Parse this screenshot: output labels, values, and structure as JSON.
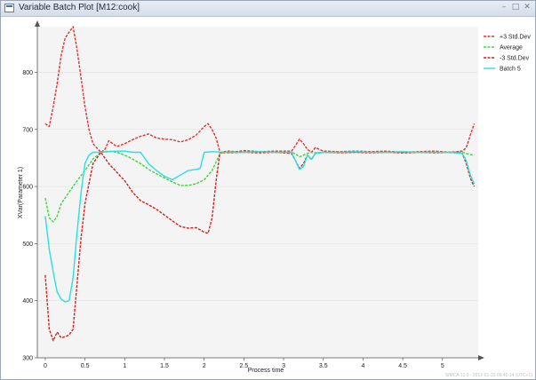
{
  "window": {
    "title": "Variable Batch Plot [M12:cook]",
    "controls": [
      "–",
      "□",
      "✕"
    ]
  },
  "chart_data": {
    "type": "line",
    "title": "",
    "xlabel": "Process time",
    "ylabel": "XVar(Parameter 1)",
    "xlim": [
      -0.1,
      5.45
    ],
    "ylim": [
      300,
      880
    ],
    "xticks": [
      "0",
      "0.5",
      "1",
      "1.5",
      "2",
      "2.5",
      "3",
      "3.5",
      "4",
      "4.5",
      "5"
    ],
    "xtick_values": [
      0,
      0.5,
      1,
      1.5,
      2,
      2.5,
      3,
      3.5,
      4,
      4.5,
      5
    ],
    "yticks": [
      "300",
      "400",
      "500",
      "600",
      "700",
      "800"
    ],
    "ytick_values": [
      300,
      400,
      500,
      600,
      700,
      800
    ],
    "grid": true,
    "legend_position": "top-right",
    "series": [
      {
        "name": "+3 Std.Dev",
        "color": "#e03030",
        "dash": "dashed",
        "x": [
          0,
          0.05,
          0.1,
          0.15,
          0.2,
          0.25,
          0.3,
          0.35,
          0.4,
          0.45,
          0.5,
          0.55,
          0.6,
          0.7,
          0.75,
          0.8,
          0.85,
          0.9,
          1.0,
          1.1,
          1.2,
          1.3,
          1.4,
          1.5,
          1.6,
          1.7,
          1.8,
          1.9,
          2.0,
          2.05,
          2.1,
          2.15,
          2.2,
          2.3,
          2.4,
          2.5,
          2.7,
          2.9,
          3.1,
          3.15,
          3.2,
          3.25,
          3.3,
          3.35,
          3.4,
          3.5,
          3.7,
          3.9,
          4.1,
          4.3,
          4.5,
          4.7,
          4.9,
          5.1,
          5.25,
          5.3,
          5.35,
          5.4
        ],
        "y": [
          710,
          705,
          740,
          780,
          830,
          860,
          870,
          880,
          840,
          790,
          740,
          700,
          675,
          660,
          665,
          680,
          675,
          670,
          675,
          682,
          688,
          692,
          685,
          683,
          682,
          678,
          682,
          690,
          705,
          710,
          700,
          685,
          660,
          662,
          661,
          663,
          661,
          662,
          662,
          672,
          683,
          675,
          665,
          660,
          668,
          662,
          661,
          662,
          661,
          662,
          660,
          661,
          662,
          660,
          662,
          668,
          690,
          710
        ]
      },
      {
        "name": "Average",
        "color": "#3ad83a",
        "dash": "dashed",
        "x": [
          0,
          0.05,
          0.1,
          0.15,
          0.2,
          0.3,
          0.4,
          0.5,
          0.6,
          0.7,
          0.8,
          0.9,
          1.0,
          1.1,
          1.2,
          1.3,
          1.4,
          1.5,
          1.6,
          1.7,
          1.8,
          1.9,
          2.0,
          2.1,
          2.2,
          2.3,
          2.5,
          2.7,
          2.9,
          3.1,
          3.15,
          3.2,
          3.25,
          3.3,
          3.35,
          3.4,
          3.5,
          3.7,
          3.9,
          4.1,
          4.3,
          4.5,
          4.7,
          4.9,
          5.1,
          5.25,
          5.3,
          5.35,
          5.4
        ],
        "y": [
          580,
          545,
          538,
          548,
          570,
          590,
          610,
          628,
          648,
          660,
          662,
          660,
          655,
          648,
          640,
          630,
          622,
          615,
          608,
          602,
          602,
          605,
          612,
          628,
          658,
          661,
          660,
          661,
          660,
          660,
          657,
          652,
          655,
          658,
          660,
          659,
          660,
          660,
          660,
          660,
          660,
          660,
          660,
          660,
          660,
          660,
          658,
          656,
          655
        ]
      },
      {
        "name": "-3 Std.Dev",
        "color": "#d02020",
        "dash": "dashed",
        "x": [
          0,
          0.05,
          0.1,
          0.15,
          0.2,
          0.25,
          0.3,
          0.35,
          0.4,
          0.45,
          0.5,
          0.6,
          0.7,
          0.8,
          0.9,
          1.0,
          1.1,
          1.2,
          1.3,
          1.4,
          1.5,
          1.6,
          1.7,
          1.8,
          1.9,
          2.0,
          2.05,
          2.1,
          2.15,
          2.2,
          2.3,
          2.5,
          2.7,
          2.9,
          3.1,
          3.15,
          3.2,
          3.25,
          3.3,
          3.35,
          3.4,
          3.5,
          3.7,
          3.9,
          4.1,
          4.3,
          4.5,
          4.7,
          4.9,
          5.1,
          5.25,
          5.3,
          5.35,
          5.4
        ],
        "y": [
          445,
          350,
          330,
          345,
          335,
          337,
          340,
          350,
          430,
          510,
          570,
          640,
          660,
          640,
          625,
          610,
          590,
          575,
          568,
          560,
          550,
          540,
          530,
          527,
          528,
          520,
          518,
          545,
          610,
          660,
          659,
          660,
          659,
          660,
          658,
          645,
          632,
          640,
          655,
          647,
          658,
          660,
          659,
          660,
          659,
          660,
          659,
          660,
          659,
          660,
          658,
          640,
          615,
          600
        ]
      },
      {
        "name": "Batch 5",
        "color": "#28e0e0",
        "dash": "solid",
        "x": [
          0,
          0.05,
          0.1,
          0.15,
          0.2,
          0.25,
          0.3,
          0.35,
          0.4,
          0.45,
          0.5,
          0.55,
          0.6,
          0.7,
          0.8,
          0.9,
          1.0,
          1.1,
          1.2,
          1.3,
          1.4,
          1.5,
          1.6,
          1.7,
          1.8,
          1.9,
          1.95,
          2.0,
          2.1,
          2.3,
          2.5,
          2.7,
          2.9,
          3.1,
          3.15,
          3.2,
          3.25,
          3.3,
          3.35,
          3.4,
          3.5,
          3.7,
          3.9,
          4.1,
          4.3,
          4.5,
          4.7,
          4.9,
          5.1,
          5.25,
          5.3,
          5.35,
          5.4
        ],
        "y": [
          548,
          490,
          450,
          415,
          403,
          398,
          400,
          440,
          520,
          590,
          640,
          655,
          660,
          660,
          661,
          662,
          662,
          660,
          660,
          640,
          628,
          618,
          612,
          620,
          628,
          630,
          632,
          660,
          661,
          660,
          660,
          661,
          660,
          660,
          645,
          630,
          635,
          655,
          648,
          658,
          660,
          660,
          661,
          660,
          660,
          661,
          660,
          660,
          660,
          658,
          645,
          620,
          605
        ]
      }
    ],
    "footer": "SIMCA 13.0 - 2012-01-23 09:45:14 (UTC+1)"
  }
}
